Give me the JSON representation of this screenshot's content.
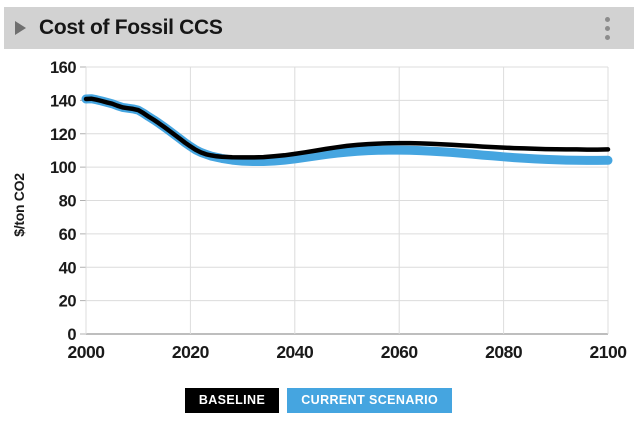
{
  "header": {
    "title": "Cost of Fossil CCS"
  },
  "colors": {
    "header_bg": "#d2d2d2",
    "baseline": "#000000",
    "current_scenario": "#45a5e0",
    "grid": "#dcdcdc",
    "axis_line": "#a8a8a8",
    "tick_text": "#1a1a1a"
  },
  "legend": [
    {
      "label": "BASELINE",
      "color": "#000000"
    },
    {
      "label": "CURRENT SCENARIO",
      "color": "#45a5e0"
    }
  ],
  "chart_data": {
    "type": "line",
    "title": "Cost of Fossil CCS",
    "xlabel": "",
    "ylabel": "$/ton CO2",
    "xlim": [
      2000,
      2100
    ],
    "ylim": [
      0,
      160
    ],
    "xticks": [
      2000,
      2020,
      2040,
      2060,
      2080,
      2100
    ],
    "yticks": [
      0,
      20,
      40,
      60,
      80,
      100,
      120,
      140,
      160
    ],
    "grid": true,
    "legend_position": "bottom",
    "x": [
      2000,
      2001,
      2002,
      2003,
      2004,
      2005,
      2006,
      2007,
      2008,
      2009,
      2010,
      2011,
      2012,
      2013,
      2014,
      2015,
      2016,
      2017,
      2018,
      2019,
      2020,
      2021,
      2022,
      2023,
      2024,
      2025,
      2026,
      2028,
      2030,
      2032,
      2034,
      2036,
      2038,
      2040,
      2042,
      2044,
      2046,
      2048,
      2050,
      2052,
      2054,
      2056,
      2058,
      2060,
      2062,
      2064,
      2066,
      2068,
      2070,
      2072,
      2074,
      2076,
      2078,
      2080,
      2082,
      2084,
      2086,
      2088,
      2090,
      2092,
      2094,
      2096,
      2098,
      2100
    ],
    "series": [
      {
        "name": "BASELINE",
        "color": "#000000",
        "stroke_width": 4.5,
        "values": [
          140.8,
          141.0,
          140.4,
          139.6,
          138.8,
          138.0,
          136.8,
          135.8,
          135.3,
          134.9,
          134.2,
          132.4,
          130.3,
          128.3,
          126.2,
          124.0,
          121.7,
          119.4,
          117.0,
          114.6,
          112.4,
          110.4,
          108.8,
          107.7,
          107.0,
          106.5,
          106.2,
          105.9,
          105.8,
          105.8,
          106.0,
          106.5,
          107.1,
          107.9,
          108.9,
          109.9,
          110.9,
          111.9,
          112.7,
          113.3,
          113.8,
          114.1,
          114.3,
          114.4,
          114.4,
          114.2,
          114.0,
          113.7,
          113.4,
          113.0,
          112.7,
          112.3,
          112.0,
          111.7,
          111.4,
          111.2,
          111.0,
          110.8,
          110.7,
          110.6,
          110.6,
          110.5,
          110.5,
          110.6
        ]
      },
      {
        "name": "CURRENT SCENARIO",
        "color": "#45a5e0",
        "stroke_width": 9,
        "values": [
          140.8,
          141.0,
          140.4,
          139.6,
          138.8,
          138.0,
          136.8,
          135.8,
          135.3,
          134.9,
          134.2,
          132.4,
          130.3,
          128.3,
          126.2,
          124.0,
          121.7,
          119.4,
          117.0,
          114.6,
          112.4,
          110.4,
          108.8,
          107.7,
          106.6,
          105.9,
          105.2,
          104.2,
          103.6,
          103.4,
          103.4,
          103.7,
          104.2,
          104.9,
          105.8,
          106.7,
          107.6,
          108.4,
          109.0,
          109.5,
          109.9,
          110.1,
          110.2,
          110.2,
          110.1,
          109.9,
          109.6,
          109.2,
          108.8,
          108.3,
          107.8,
          107.2,
          106.7,
          106.2,
          105.7,
          105.3,
          104.9,
          104.6,
          104.4,
          104.2,
          104.1,
          104.0,
          104.0,
          104.1
        ]
      }
    ]
  }
}
